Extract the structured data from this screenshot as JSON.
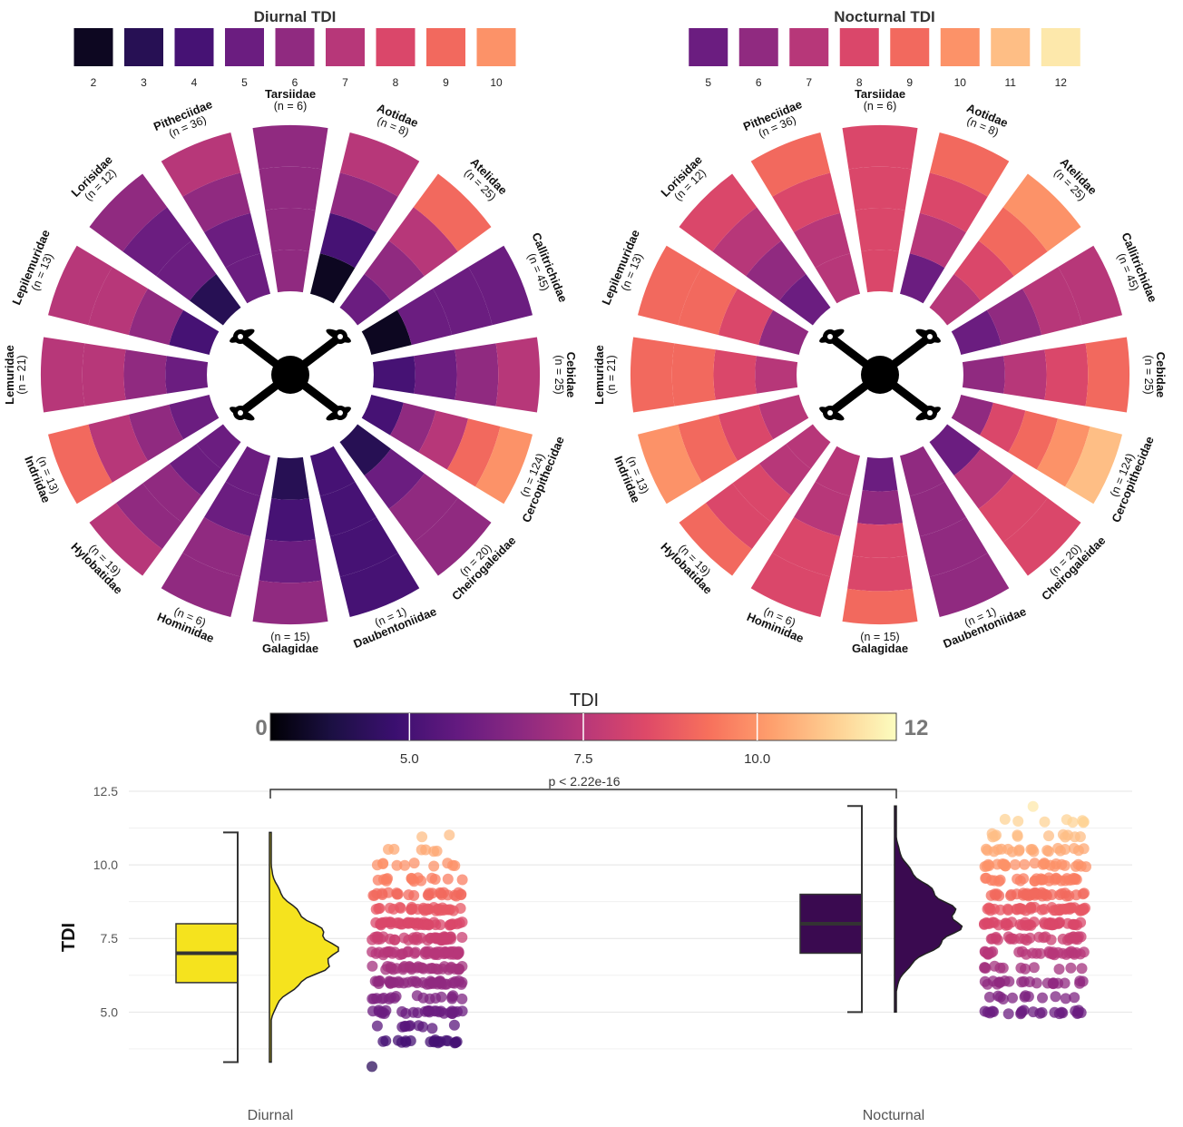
{
  "colors": {
    "magma_stops": [
      "#000004",
      "#1c1044",
      "#3b0f70",
      "#641a80",
      "#8c2981",
      "#b73779",
      "#de4968",
      "#f7705c",
      "#fe9f6d",
      "#fecf92",
      "#fcfdbf"
    ],
    "diurnal_fill": "#f5e31e",
    "nocturnal_fill": "#3a0a50"
  },
  "icons": {
    "center": "drone-icon"
  },
  "chart_data": [
    {
      "type": "radial-bar",
      "title": "Diurnal TDI",
      "legend": {
        "values": [
          2,
          3,
          4,
          5,
          6,
          7,
          8,
          9,
          10
        ],
        "labels": [
          "2",
          "3",
          "4",
          "5",
          "6",
          "7",
          "8",
          "9",
          "10"
        ]
      },
      "families": [
        {
          "name": "Tarsiidae",
          "n": "(n = 6)",
          "rings": [
            6,
            6,
            6,
            6
          ]
        },
        {
          "name": "Aotidae",
          "n": "(n = 8)",
          "rings": [
            2,
            4,
            6,
            7
          ]
        },
        {
          "name": "Atelidae",
          "n": "(n = 25)",
          "rings": [
            5,
            6,
            7,
            9
          ]
        },
        {
          "name": "Callitrichidae",
          "n": "(n = 45)",
          "rings": [
            2,
            5,
            5,
            5
          ]
        },
        {
          "name": "Cebidae",
          "n": "(n = 25)",
          "rings": [
            4,
            5,
            6,
            7
          ]
        },
        {
          "name": "Cercopithecidae",
          "n": "(n = 124)",
          "rings": [
            4,
            6,
            7,
            9,
            10
          ]
        },
        {
          "name": "Cheirogaleidae",
          "n": "(n = 20)",
          "rings": [
            3,
            5,
            6,
            6
          ]
        },
        {
          "name": "Daubentoniidae",
          "n": "(n = 1)",
          "rings": [
            4,
            4,
            4,
            4
          ]
        },
        {
          "name": "Galagidae",
          "n": "(n = 15)",
          "rings": [
            3,
            4,
            5,
            6
          ]
        },
        {
          "name": "Hominidae",
          "n": "(n = 6)",
          "rings": [
            5,
            5,
            6,
            6
          ]
        },
        {
          "name": "Hylobatidae",
          "n": "(n = 19)",
          "rings": [
            5,
            5,
            6,
            6,
            7
          ]
        },
        {
          "name": "Indriidae",
          "n": "(n = 13)",
          "rings": [
            5,
            6,
            7,
            9
          ]
        },
        {
          "name": "Lemuridae",
          "n": "(n = 21)",
          "rings": [
            5,
            6,
            7,
            7
          ]
        },
        {
          "name": "Lepilemuridae",
          "n": "(n = 13)",
          "rings": [
            4,
            6,
            7,
            7
          ]
        },
        {
          "name": "Lorisidae",
          "n": "(n = 12)",
          "rings": [
            3,
            5,
            5,
            6
          ]
        },
        {
          "name": "Pitheciidae",
          "n": "(n = 36)",
          "rings": [
            5,
            5,
            6,
            7
          ]
        }
      ]
    },
    {
      "type": "radial-bar",
      "title": "Nocturnal TDI",
      "legend": {
        "values": [
          5,
          6,
          7,
          8,
          9,
          10,
          11,
          12
        ],
        "labels": [
          "5",
          "6",
          "7",
          "8",
          "9",
          "10",
          "11",
          "12"
        ]
      },
      "families": [
        {
          "name": "Tarsiidae",
          "n": "(n = 6)",
          "rings": [
            8,
            8,
            8,
            8
          ]
        },
        {
          "name": "Aotidae",
          "n": "(n = 8)",
          "rings": [
            5,
            7,
            8,
            9
          ]
        },
        {
          "name": "Atelidae",
          "n": "(n = 25)",
          "rings": [
            7,
            8,
            9,
            10
          ]
        },
        {
          "name": "Callitrichidae",
          "n": "(n = 45)",
          "rings": [
            5,
            6,
            7,
            7
          ]
        },
        {
          "name": "Cebidae",
          "n": "(n = 25)",
          "rings": [
            6,
            7,
            8,
            9
          ]
        },
        {
          "name": "Cercopithecidae",
          "n": "(n = 124)",
          "rings": [
            6,
            8,
            9,
            10,
            11
          ]
        },
        {
          "name": "Cheirogaleidae",
          "n": "(n = 20)",
          "rings": [
            5,
            7,
            8,
            8
          ]
        },
        {
          "name": "Daubentoniidae",
          "n": "(n = 1)",
          "rings": [
            6,
            6,
            6,
            6
          ]
        },
        {
          "name": "Galagidae",
          "n": "(n = 15)",
          "rings": [
            5,
            6,
            8,
            8,
            9
          ]
        },
        {
          "name": "Hominidae",
          "n": "(n = 6)",
          "rings": [
            7,
            7,
            8,
            8
          ]
        },
        {
          "name": "Hylobatidae",
          "n": "(n = 19)",
          "rings": [
            7,
            7,
            8,
            8,
            9
          ]
        },
        {
          "name": "Indriidae",
          "n": "(n = 13)",
          "rings": [
            7,
            8,
            9,
            10
          ]
        },
        {
          "name": "Lemuridae",
          "n": "(n = 21)",
          "rings": [
            7,
            8,
            9,
            9
          ]
        },
        {
          "name": "Lepilemuridae",
          "n": "(n = 13)",
          "rings": [
            6,
            8,
            9,
            9
          ]
        },
        {
          "name": "Lorisidae",
          "n": "(n = 12)",
          "rings": [
            5,
            6,
            7,
            8
          ]
        },
        {
          "name": "Pitheciidae",
          "n": "(n = 36)",
          "rings": [
            7,
            7,
            8,
            9
          ]
        }
      ]
    },
    {
      "type": "raincloud",
      "colorbar": {
        "title": "TDI",
        "range": [
          3,
          12
        ],
        "ticks": [
          5.0,
          7.5,
          10.0
        ],
        "tick_labels": [
          "5.0",
          "7.5",
          "10.0"
        ],
        "end_labels": [
          "0",
          "12"
        ]
      },
      "ylabel": "TDI",
      "ylim": [
        3.0,
        12.5
      ],
      "yticks": [
        5.0,
        7.5,
        10.0,
        12.5
      ],
      "ytick_labels": [
        "5.0",
        "7.5",
        "10.0",
        "12.5"
      ],
      "groups": [
        {
          "name": "Diurnal",
          "box": {
            "q1": 6,
            "median": 7,
            "q3": 8,
            "whisker_low": 3.3,
            "whisker_high": 11.1
          },
          "density_peak": 7.0,
          "points": [
            {
              "y": 3.2,
              "count": 1
            },
            {
              "y": 4,
              "count": 20
            },
            {
              "y": 4.5,
              "count": 10
            },
            {
              "y": 5,
              "count": 28
            },
            {
              "y": 5.5,
              "count": 18
            },
            {
              "y": 6,
              "count": 40
            },
            {
              "y": 6.5,
              "count": 34
            },
            {
              "y": 7,
              "count": 45
            },
            {
              "y": 7.5,
              "count": 40
            },
            {
              "y": 8,
              "count": 40
            },
            {
              "y": 8.5,
              "count": 30
            },
            {
              "y": 9,
              "count": 25
            },
            {
              "y": 9.5,
              "count": 15
            },
            {
              "y": 10,
              "count": 10
            },
            {
              "y": 10.5,
              "count": 6
            },
            {
              "y": 11,
              "count": 2
            }
          ]
        },
        {
          "name": "Nocturnal",
          "box": {
            "q1": 7,
            "median": 8,
            "q3": 9,
            "whisker_low": 5.0,
            "whisker_high": 12.0
          },
          "density_peak": 8.0,
          "points": [
            {
              "y": 5,
              "count": 22
            },
            {
              "y": 5.5,
              "count": 12
            },
            {
              "y": 6,
              "count": 22
            },
            {
              "y": 6.5,
              "count": 12
            },
            {
              "y": 7,
              "count": 30
            },
            {
              "y": 7.5,
              "count": 28
            },
            {
              "y": 8,
              "count": 40
            },
            {
              "y": 8.5,
              "count": 40
            },
            {
              "y": 9,
              "count": 35
            },
            {
              "y": 9.5,
              "count": 30
            },
            {
              "y": 10,
              "count": 25
            },
            {
              "y": 10.5,
              "count": 20
            },
            {
              "y": 11,
              "count": 12
            },
            {
              "y": 11.5,
              "count": 8
            },
            {
              "y": 12,
              "count": 1
            }
          ]
        }
      ],
      "annotation": {
        "text": "p < 2.22e-16"
      }
    }
  ]
}
